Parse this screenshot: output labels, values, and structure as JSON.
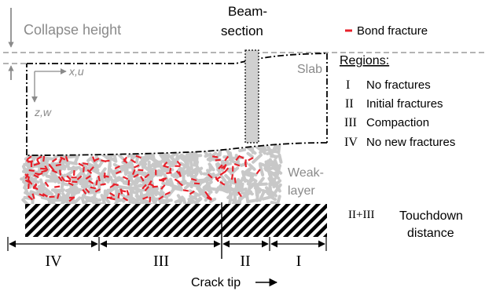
{
  "labels": {
    "collapse_height": "Collapse height",
    "beam_line1": "Beam-",
    "beam_line2": "section",
    "bond_fracture": "Bond fracture",
    "regions_title": "Regions:",
    "slab": "Slab",
    "x_axis": "x,u",
    "z_axis": "z,w",
    "weak_line1": "Weak-",
    "weak_line2": "layer",
    "touchdown_code": "II+III",
    "touchdown_line1": "Touchdown",
    "touchdown_line2": "distance",
    "crack_tip": "Crack tip"
  },
  "regions": [
    {
      "numeral": "I",
      "desc": "No fractures"
    },
    {
      "numeral": "II",
      "desc": "Initial fractures"
    },
    {
      "numeral": "III",
      "desc": "Compaction"
    },
    {
      "numeral": "IV",
      "desc": "No new fractures"
    }
  ],
  "spans": [
    {
      "numeral": "IV"
    },
    {
      "numeral": "III"
    },
    {
      "numeral": "II"
    },
    {
      "numeral": "I"
    }
  ],
  "colors": {
    "fracture": "#e8202a",
    "grain": "#c8c8c8",
    "beam": "#d0d0d0",
    "hatch": "#000000"
  }
}
